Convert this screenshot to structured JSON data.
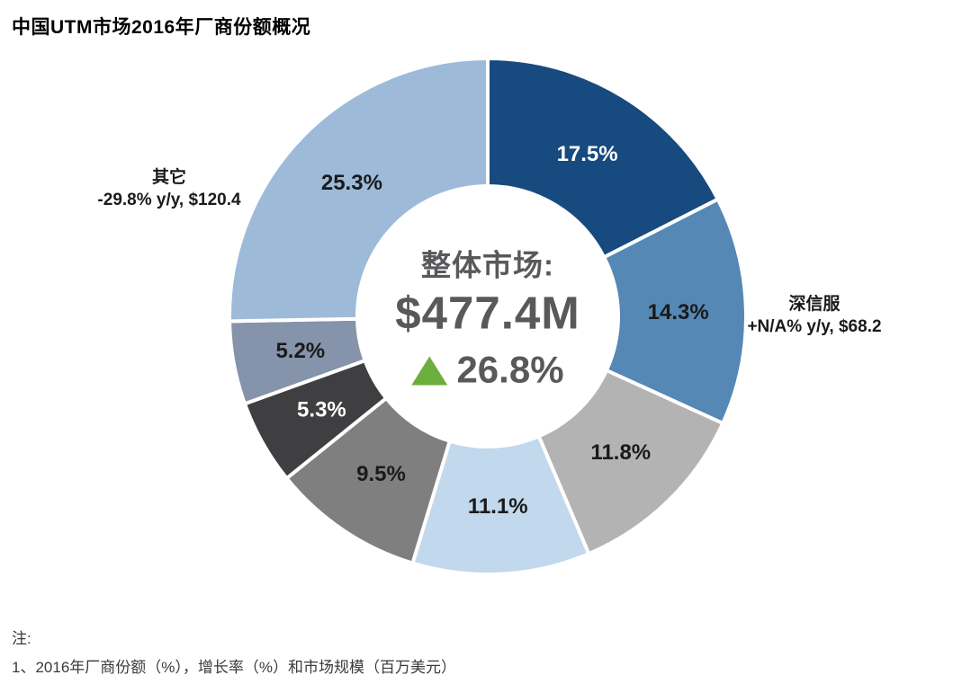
{
  "title": "中国UTM市场2016年厂商份额概况",
  "chart_data": {
    "type": "pie",
    "subtype": "donut",
    "direction": "clockwise",
    "start_angle_deg": 0,
    "center": {
      "label": "整体市场:",
      "value": "$477.4M",
      "growth": "26.8%",
      "growth_direction": "up",
      "growth_triangle_color": "#6CAE3E"
    },
    "slices": [
      {
        "label": "17.5%",
        "value": 17.5,
        "color": "#174A7E",
        "label_color": "#FFFFFF"
      },
      {
        "label": "14.3%",
        "value": 14.3,
        "color": "#5588B4",
        "label_color": "#1A1A1A"
      },
      {
        "label": "11.8%",
        "value": 11.8,
        "color": "#B3B3B3",
        "label_color": "#1A1A1A"
      },
      {
        "label": "11.1%",
        "value": 11.1,
        "color": "#C2D8EC",
        "label_color": "#1A1A1A"
      },
      {
        "label": "9.5%",
        "value": 9.5,
        "color": "#7F7F7F",
        "label_color": "#1A1A1A"
      },
      {
        "label": "5.3%",
        "value": 5.3,
        "color": "#3F3F41",
        "label_color": "#FFFFFF"
      },
      {
        "label": "5.2%",
        "value": 5.2,
        "color": "#8593AB",
        "label_color": "#1A1A1A"
      },
      {
        "label": "25.3%",
        "value": 25.3,
        "color": "#9DBAD9",
        "label_color": "#1A1A1A"
      }
    ]
  },
  "annotations": {
    "left": {
      "name": "其它",
      "detail": "-29.8% y/y, $120.4"
    },
    "right": {
      "name": "深信服",
      "detail": "+N/A% y/y, $68.2"
    }
  },
  "notes": {
    "heading": "注:",
    "line1": "1、2016年厂商份额（%），增长率（%）和市场规模（百万美元）"
  }
}
